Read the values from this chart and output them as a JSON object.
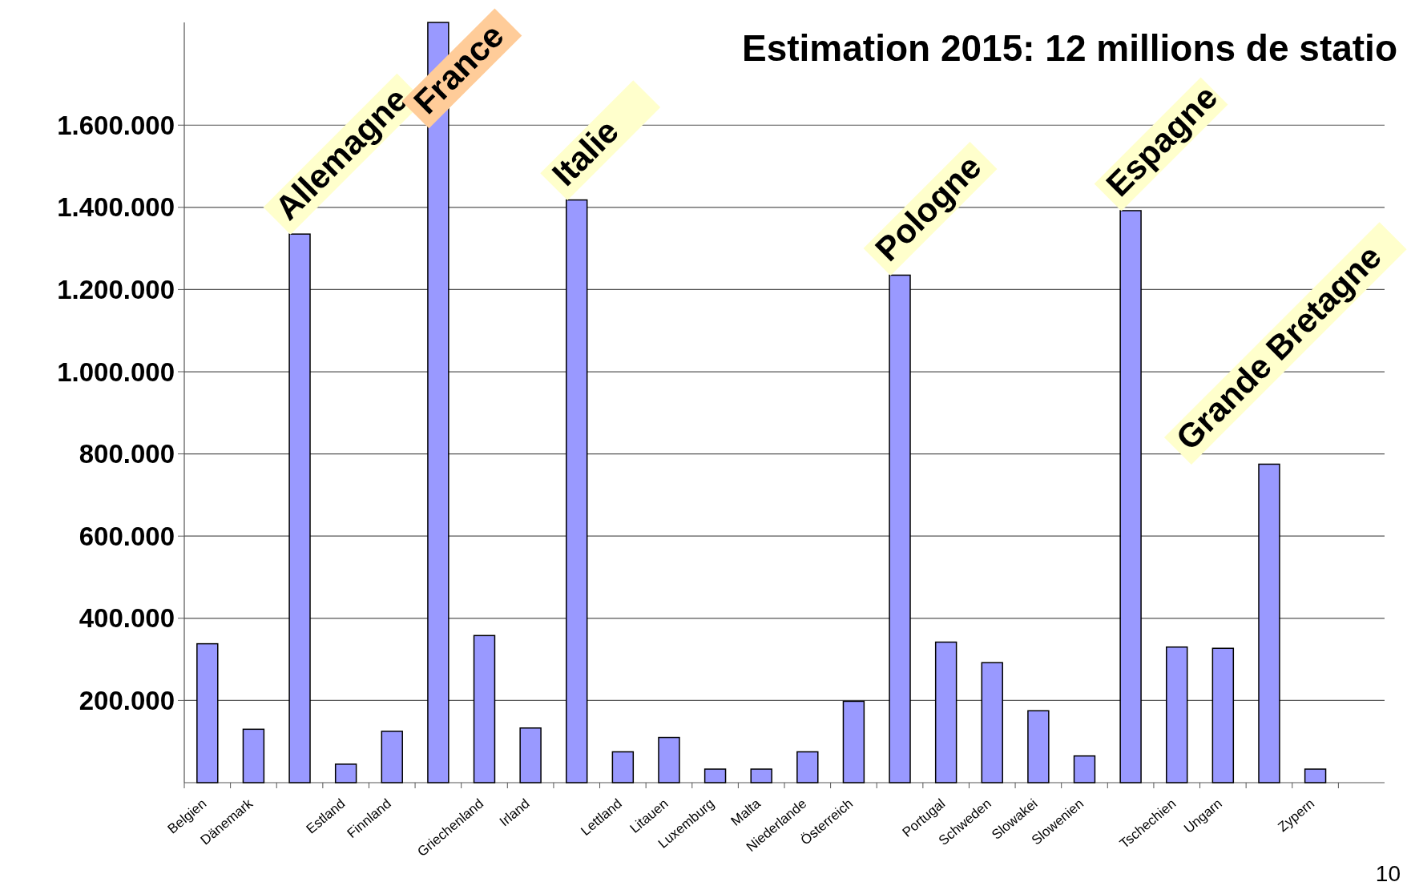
{
  "chart_data": {
    "type": "bar",
    "title": "Estimation 2015: 12 millions de statio",
    "categories": [
      "Belgien",
      "Dänemark",
      null,
      "Estland",
      "Finnland",
      null,
      "Griechenland",
      "Irland",
      null,
      "Lettland",
      "Litauen",
      "Luxemburg",
      "Malta",
      "Niederlande",
      "Österreich",
      null,
      "Portugal",
      "Schweden",
      "Slowakei",
      "Slowenien",
      null,
      "Tschechien",
      "Ungarn",
      null,
      "Zypern",
      null
    ],
    "values": [
      338000,
      130000,
      1335000,
      45000,
      125000,
      1850000,
      358000,
      133000,
      1418000,
      75000,
      110000,
      33000,
      33000,
      75000,
      198000,
      1235000,
      342000,
      292000,
      175000,
      65000,
      1392000,
      330000,
      327000,
      775000,
      33000,
      null
    ],
    "color": "#9999ff",
    "ylim": [
      0,
      1850000
    ],
    "yticks": [
      {
        "value": 200000,
        "label": "200.000"
      },
      {
        "value": 400000,
        "label": "400.000"
      },
      {
        "value": 600000,
        "label": "600.000"
      },
      {
        "value": 800000,
        "label": "800.000"
      },
      {
        "value": 1000000,
        "label": "1.000.000"
      },
      {
        "value": 1200000,
        "label": "1.200.000"
      },
      {
        "value": 1400000,
        "label": "1.400.000"
      },
      {
        "value": 1600000,
        "label": "1.600.000"
      }
    ],
    "grid": "y",
    "annotations": [
      "Allemagne",
      "France",
      "Italie",
      "Pologne",
      "Espagne",
      "Grande Bretagne",
      "10"
    ]
  }
}
